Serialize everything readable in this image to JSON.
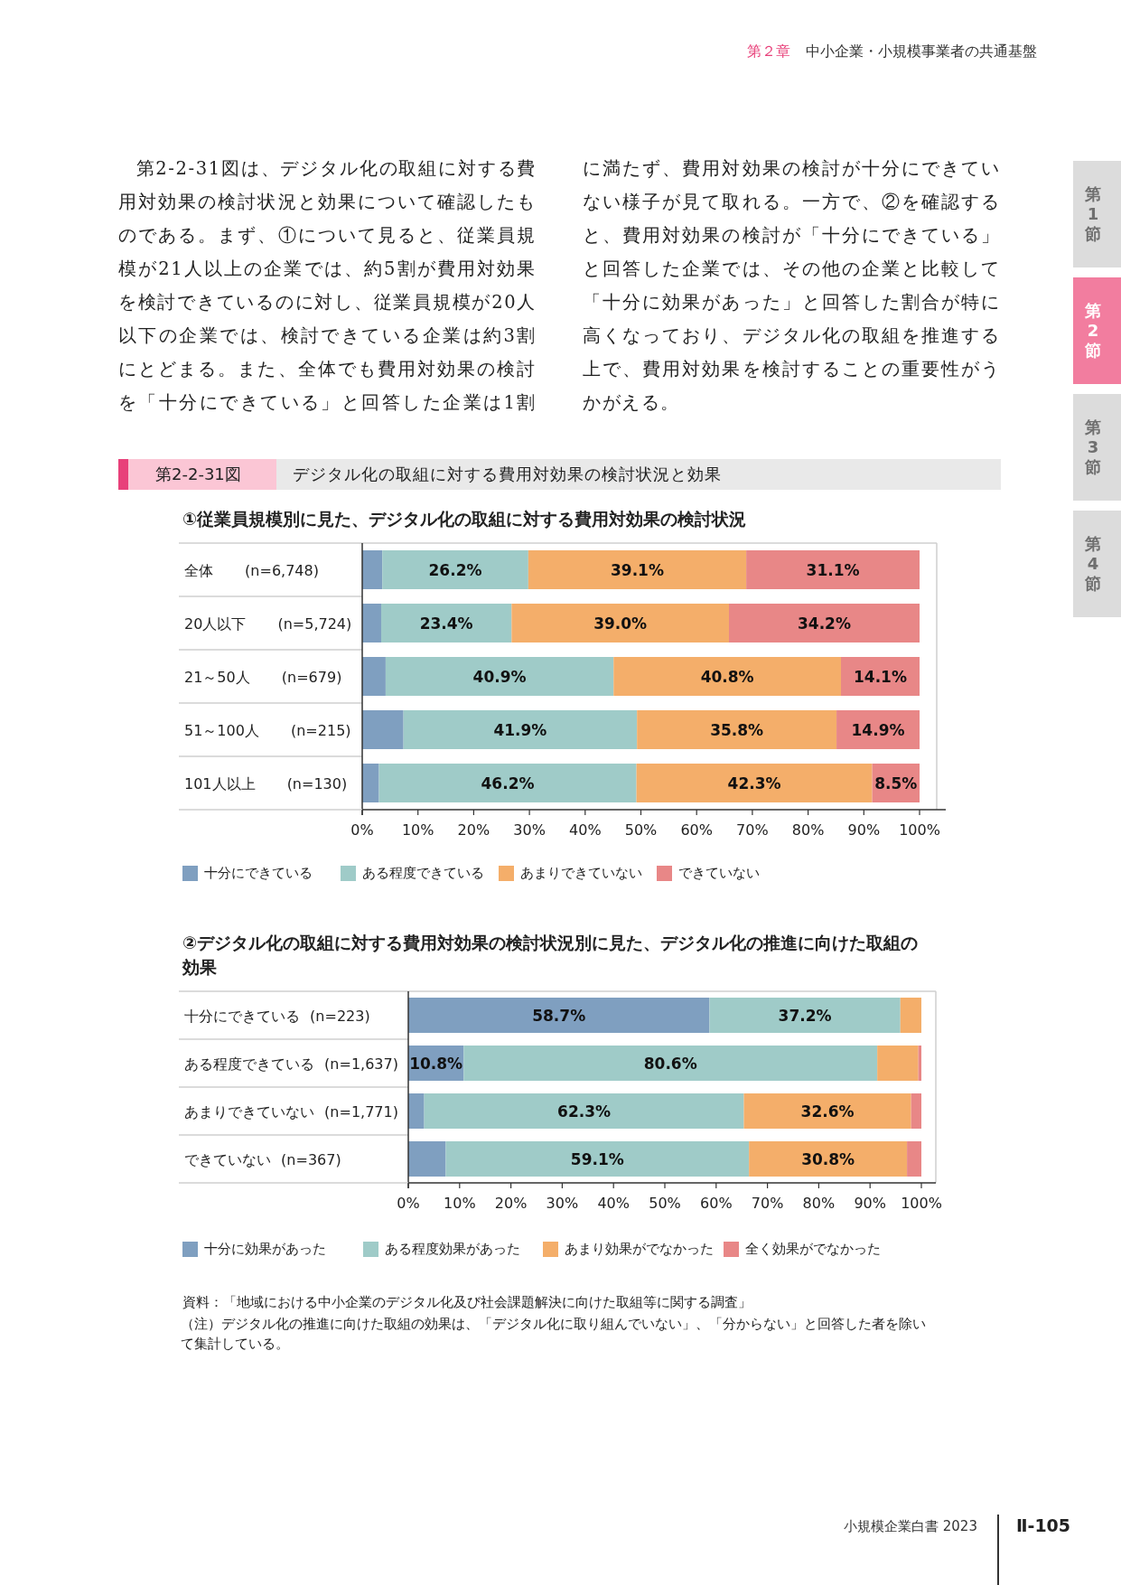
{
  "chart_data": [
    {
      "type": "bar",
      "orientation": "horizontal",
      "stacked": true,
      "legend": "bottom",
      "title": "①従業員規模別に見た、デジタル化の取組に対する費用対効果の検討状況",
      "categories": [
        "全体 (n=6,748)",
        "20人以下 (n=5,724)",
        "21～50人 (n=679)",
        "51～100人 (n=215)",
        "101人以上 (n=130)"
      ],
      "series": [
        {
          "name": "十分にできている",
          "color": "#7f9fc0",
          "values": [
            3.6,
            3.4,
            4.2,
            7.4,
            3.0
          ],
          "value_labels": [
            null,
            null,
            null,
            null,
            null
          ]
        },
        {
          "name": "ある程度できている",
          "color": "#9fcbc8",
          "values": [
            26.2,
            23.4,
            40.9,
            41.9,
            46.2
          ],
          "value_labels": [
            "26.2%",
            "23.4%",
            "40.9%",
            "41.9%",
            "46.2%"
          ]
        },
        {
          "name": "あまりできていない",
          "color": "#f4ae6a",
          "values": [
            39.1,
            39.0,
            40.8,
            35.8,
            42.3
          ],
          "value_labels": [
            "39.1%",
            "39.0%",
            "40.8%",
            "35.8%",
            "42.3%"
          ]
        },
        {
          "name": "できていない",
          "color": "#e88787",
          "values": [
            31.1,
            34.2,
            14.1,
            14.9,
            8.5
          ],
          "value_labels": [
            "31.1%",
            "34.2%",
            "14.1%",
            "14.9%",
            "8.5%"
          ]
        }
      ],
      "xlim": [
        0,
        100
      ],
      "xticks": [
        {
          "value": 0,
          "label": "0%"
        },
        {
          "value": 10,
          "label": "10%"
        },
        {
          "value": 20,
          "label": "20%"
        },
        {
          "value": 30,
          "label": "30%"
        },
        {
          "value": 40,
          "label": "40%"
        },
        {
          "value": 50,
          "label": "50%"
        },
        {
          "value": 60,
          "label": "60%"
        },
        {
          "value": 70,
          "label": "70%"
        },
        {
          "value": 80,
          "label": "80%"
        },
        {
          "value": 90,
          "label": "90%"
        },
        {
          "value": 100,
          "label": "100%"
        }
      ],
      "annotations": [
        "第２章",
        "中小企業・小規模事業者の共通基盤",
        "第2-2-31図は、デジタル化の取組に対する費用対効果の検討状況と効果について確認したものである。まず、①について見ると、従業員規模が21人以上の企業では、約5割が費用対効果を検討できているのに対し、従業員規模が20人以下の企業では、検討できている企業は約3割にとどまる。また、全体でも費用対効果の検討を「十分にできている」と回答した企業は1割に満たず、費用対効果の検討が十分にできていない様子が見て取れる。一方で、②を確認すると、費用対効果の検討が「十分にできている」と回答した企業では、その他の企業と比較して「十分に効果があった」と回答した割合が特に高くなっており、デジタル化の取組を推進する上で、費用対効果を検討することの重要性がうかがえる。",
        "第1節",
        "第2節",
        "第3節",
        "第4節",
        "第2-2-31図",
        "デジタル化の取組に対する費用対効果の検討状況と効果"
      ]
    },
    {
      "type": "bar",
      "orientation": "horizontal",
      "stacked": true,
      "legend": "bottom",
      "title": "②デジタル化の取組に対する費用対効果の検討状況別に見た、デジタル化の推進に向けた取組の効果",
      "categories": [
        "十分にできている (n=223)",
        "ある程度できている (n=1,637)",
        "あまりできていない (n=1,771)",
        "できていない (n=367)"
      ],
      "series": [
        {
          "name": "十分に効果があった",
          "color": "#7f9fc0",
          "values": [
            58.7,
            10.8,
            3.1,
            7.3
          ],
          "value_labels": [
            "58.7%",
            "10.8%",
            null,
            null
          ]
        },
        {
          "name": "ある程度効果があった",
          "color": "#9fcbc8",
          "values": [
            37.2,
            80.6,
            62.3,
            59.1
          ],
          "value_labels": [
            "37.2%",
            "80.6%",
            "62.3%",
            "59.1%"
          ]
        },
        {
          "name": "あまり効果がでなかった",
          "color": "#f4ae6a",
          "values": [
            4.1,
            8.0,
            32.6,
            30.8
          ],
          "value_labels": [
            null,
            null,
            "32.6%",
            "30.8%"
          ]
        },
        {
          "name": "全く効果がでなかった",
          "color": "#e88787",
          "values": [
            0,
            0.6,
            2.0,
            2.8
          ],
          "value_labels": [
            null,
            null,
            null,
            null
          ]
        }
      ],
      "xlim": [
        0,
        100
      ],
      "xticks": [
        {
          "value": 0,
          "label": "0%"
        },
        {
          "value": 10,
          "label": "10%"
        },
        {
          "value": 20,
          "label": "20%"
        },
        {
          "value": 30,
          "label": "30%"
        },
        {
          "value": 40,
          "label": "40%"
        },
        {
          "value": 50,
          "label": "50%"
        },
        {
          "value": 60,
          "label": "60%"
        },
        {
          "value": 70,
          "label": "70%"
        },
        {
          "value": 80,
          "label": "80%"
        },
        {
          "value": 90,
          "label": "90%"
        },
        {
          "value": 100,
          "label": "100%"
        }
      ],
      "annotations": [
        "資料：「地域における中小企業のデジタル化及び社会課題解決に向けた取組等に関する調査」",
        "（注）デジタル化の推進に向けた取組の効果は、「デジタル化に取り組んでいない」、「分からない」と回答した者を除いて集計している。",
        "小規模企業白書 2023",
        "Ⅱ-105"
      ]
    }
  ]
}
